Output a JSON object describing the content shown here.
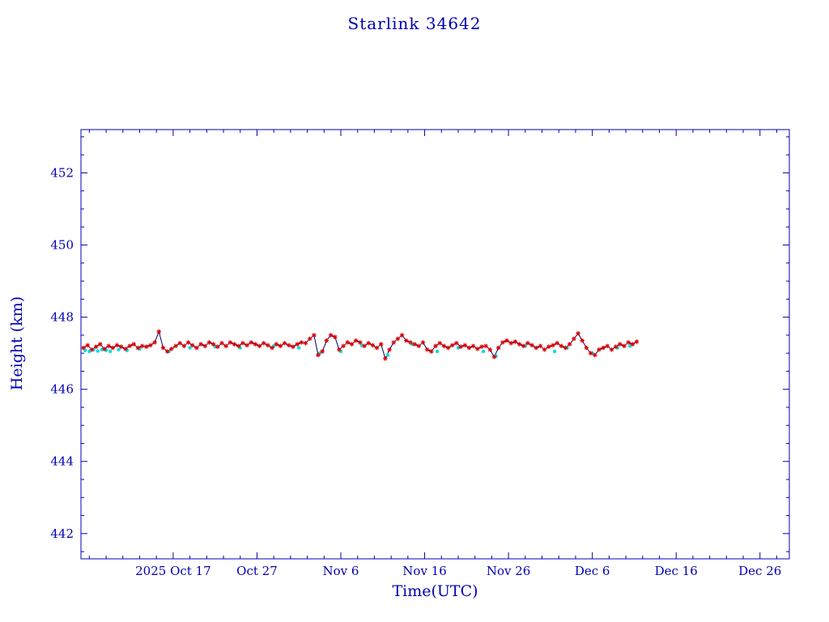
{
  "page": {
    "background": "#ffffff"
  },
  "chart_data": {
    "type": "line",
    "title": "Starlink 34642",
    "xlabel": "Time(UTC)",
    "ylabel": "Height (km)",
    "x_unit": "days since 2025-10-06",
    "xlim": [
      0,
      84.5
    ],
    "ylim": [
      441.3,
      453.2
    ],
    "grid": false,
    "x_ticks": [
      {
        "x": 11,
        "label": "2025 Oct 17"
      },
      {
        "x": 21,
        "label": "Oct 27"
      },
      {
        "x": 31,
        "label": "Nov 6"
      },
      {
        "x": 41,
        "label": "Nov 16"
      },
      {
        "x": 51,
        "label": "Nov 26"
      },
      {
        "x": 61,
        "label": "Dec 6"
      },
      {
        "x": 71,
        "label": "Dec 16"
      },
      {
        "x": 81,
        "label": "Dec 26"
      }
    ],
    "x_minor_tick_step": 2,
    "y_ticks": [
      {
        "y": 442,
        "label": "442"
      },
      {
        "y": 444,
        "label": "444"
      },
      {
        "y": 446,
        "label": "446"
      },
      {
        "y": 448,
        "label": "448"
      },
      {
        "y": 450,
        "label": "450"
      },
      {
        "y": 452,
        "label": "452"
      }
    ],
    "y_minor_tick_step": 0.5,
    "colors": {
      "axis": "#0000b3",
      "text": "#0000b3",
      "line": "#000066",
      "red_marker": "#dd0000",
      "cyan_marker": "#00dede"
    },
    "series": [
      {
        "name": "height-red-asterisks",
        "marker": "asterisk",
        "color_key": "red_marker",
        "x_start": 0.3,
        "x_step": 0.5,
        "values": [
          447.15,
          447.22,
          447.1,
          447.18,
          447.25,
          447.12,
          447.2,
          447.15,
          447.22,
          447.18,
          447.12,
          447.2,
          447.25,
          447.15,
          447.2,
          447.18,
          447.22,
          447.3,
          447.6,
          447.15,
          447.05,
          447.12,
          447.2,
          447.28,
          447.2,
          447.3,
          447.22,
          447.15,
          447.25,
          447.2,
          447.3,
          447.25,
          447.18,
          447.28,
          447.2,
          447.3,
          447.25,
          447.2,
          447.28,
          447.22,
          447.3,
          447.25,
          447.2,
          447.28,
          447.22,
          447.15,
          447.25,
          447.2,
          447.28,
          447.22,
          447.18,
          447.25,
          447.3,
          447.28,
          447.4,
          447.5,
          446.95,
          447.05,
          447.35,
          447.5,
          447.45,
          447.1,
          447.2,
          447.3,
          447.25,
          447.35,
          447.3,
          447.2,
          447.28,
          447.22,
          447.15,
          447.25,
          446.85,
          447.1,
          447.3,
          447.4,
          447.5,
          447.35,
          447.3,
          447.25,
          447.2,
          447.3,
          447.1,
          447.05,
          447.2,
          447.28,
          447.2,
          447.15,
          447.22,
          447.28,
          447.18,
          447.22,
          447.15,
          447.2,
          447.12,
          447.18,
          447.2,
          447.1,
          446.9,
          447.15,
          447.3,
          447.35,
          447.28,
          447.32,
          447.25,
          447.2,
          447.28,
          447.22,
          447.15,
          447.2,
          447.1,
          447.18,
          447.22,
          447.28,
          447.2,
          447.15,
          447.25,
          447.4,
          447.55,
          447.35,
          447.15,
          447.0,
          446.95,
          447.1,
          447.15,
          447.2,
          447.1,
          447.18,
          447.25,
          447.2,
          447.3,
          447.25,
          447.32
        ]
      },
      {
        "name": "height-cyan-dots",
        "marker": "dot",
        "color_key": "cyan_marker",
        "points": [
          [
            0.5,
            447.08
          ],
          [
            1.0,
            447.05
          ],
          [
            1.5,
            447.1
          ],
          [
            2.0,
            447.06
          ],
          [
            2.5,
            447.1
          ],
          [
            3.0,
            447.08
          ],
          [
            3.5,
            447.05
          ],
          [
            4.5,
            447.1
          ],
          [
            5.5,
            447.08
          ],
          [
            7.0,
            447.12
          ],
          [
            10.5,
            447.05
          ],
          [
            13.0,
            447.15
          ],
          [
            16.0,
            447.18
          ],
          [
            19.0,
            447.15
          ],
          [
            23.0,
            447.2
          ],
          [
            26.0,
            447.15
          ],
          [
            28.5,
            447.0
          ],
          [
            31.0,
            447.05
          ],
          [
            33.5,
            447.22
          ],
          [
            36.6,
            446.95
          ],
          [
            39.5,
            447.25
          ],
          [
            42.5,
            447.05
          ],
          [
            45.0,
            447.15
          ],
          [
            48.0,
            447.05
          ],
          [
            49.5,
            446.92
          ],
          [
            53.0,
            447.2
          ],
          [
            56.5,
            447.05
          ],
          [
            58.0,
            447.15
          ],
          [
            61.0,
            447.0
          ],
          [
            64.0,
            447.15
          ],
          [
            65.5,
            447.2
          ]
        ]
      }
    ],
    "line_through_series": 0
  }
}
